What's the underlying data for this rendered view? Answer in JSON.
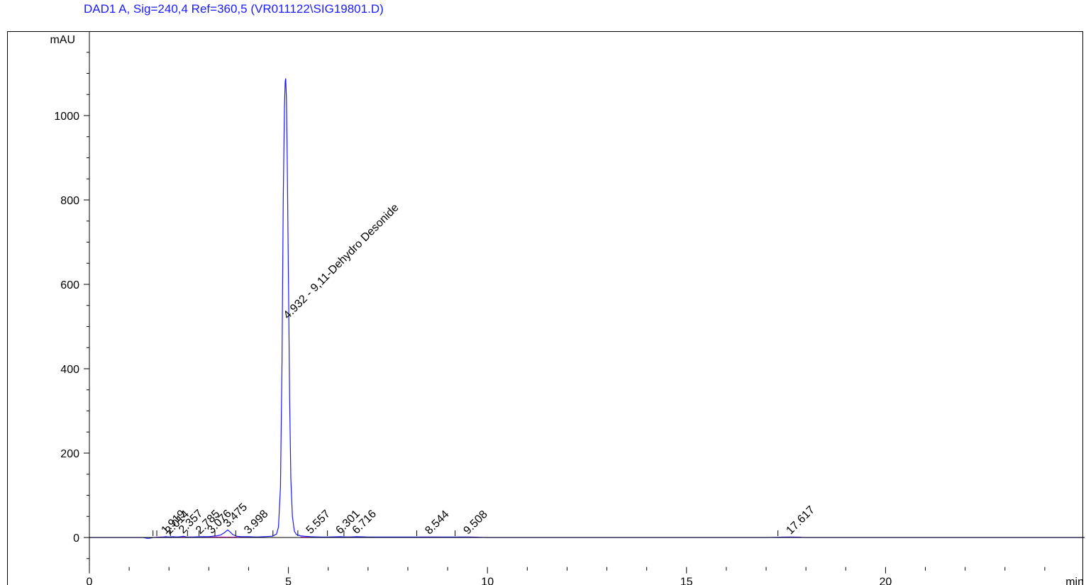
{
  "chart_data": {
    "type": "line",
    "title": "DAD1 A, Sig=240,4 Ref=360,5 (VR011122\\SIG19801.D)",
    "xlabel": "min",
    "ylabel": "mAU",
    "xlim": [
      0,
      25
    ],
    "ylim": [
      -70,
      1200
    ],
    "xticks": [
      0,
      5,
      10,
      15,
      20
    ],
    "yticks": [
      0,
      200,
      400,
      600,
      800,
      1000
    ],
    "grid": false,
    "colors": {
      "signal": "#1a1aff",
      "baseline": "#ff00ff",
      "title": "#1a1aff",
      "axis": "#000000"
    },
    "series": [
      {
        "x": [
          0,
          1.35,
          1.45,
          1.5,
          1.6,
          1.85,
          1.92,
          2.0,
          2.1,
          2.2,
          2.3,
          2.36,
          2.45,
          2.6,
          2.79,
          2.9,
          3.0,
          3.1,
          3.2,
          3.3,
          3.4,
          3.45,
          3.475,
          3.5,
          3.55,
          3.6,
          3.7,
          3.8,
          3.9,
          4.0,
          4.2,
          4.4,
          4.6,
          4.7,
          4.75,
          4.8,
          4.84,
          4.87,
          4.9,
          4.92,
          4.932,
          4.95,
          4.97,
          5.0,
          5.03,
          5.06,
          5.1,
          5.15,
          5.2,
          5.3,
          5.4,
          5.557,
          5.8,
          6.0,
          6.3,
          6.5,
          6.716,
          7.0,
          7.5,
          8.0,
          8.544,
          9.0,
          9.508,
          10.0,
          12.0,
          15.0,
          17.0,
          17.617,
          18.0,
          20.0,
          22.0,
          25.0
        ],
        "y": [
          0,
          0,
          -2,
          -2,
          0,
          1,
          2,
          1,
          2,
          1,
          2,
          3,
          1,
          1,
          2,
          2,
          2,
          3,
          4,
          6,
          12,
          16,
          18,
          16,
          12,
          7,
          3,
          2,
          2,
          2,
          1,
          2,
          3,
          8,
          25,
          120,
          420,
          800,
          1020,
          1082,
          1088,
          1040,
          900,
          620,
          330,
          140,
          50,
          15,
          7,
          4,
          3,
          2,
          1,
          1,
          2,
          1,
          2,
          1,
          1,
          1,
          1,
          1,
          1,
          0,
          0,
          0,
          0,
          1,
          0,
          0,
          0,
          0
        ]
      }
    ],
    "peaks": [
      {
        "rt": 1.919,
        "label": "1.919"
      },
      {
        "rt": 2.014,
        "label": "2.014"
      },
      {
        "rt": 2.357,
        "label": "2.357"
      },
      {
        "rt": 2.785,
        "label": "2.785"
      },
      {
        "rt": 3.076,
        "label": "3.076"
      },
      {
        "rt": 3.475,
        "label": "3.475"
      },
      {
        "rt": 3.998,
        "label": "3.998"
      },
      {
        "rt": 4.932,
        "label": "4.932 - 9,11-Dehydro Desonide"
      },
      {
        "rt": 5.557,
        "label": "5.557"
      },
      {
        "rt": 6.301,
        "label": "6.301"
      },
      {
        "rt": 6.716,
        "label": "6.716"
      },
      {
        "rt": 8.544,
        "label": "8.544"
      },
      {
        "rt": 9.508,
        "label": "9.508"
      },
      {
        "rt": 17.617,
        "label": "17.617"
      }
    ]
  }
}
